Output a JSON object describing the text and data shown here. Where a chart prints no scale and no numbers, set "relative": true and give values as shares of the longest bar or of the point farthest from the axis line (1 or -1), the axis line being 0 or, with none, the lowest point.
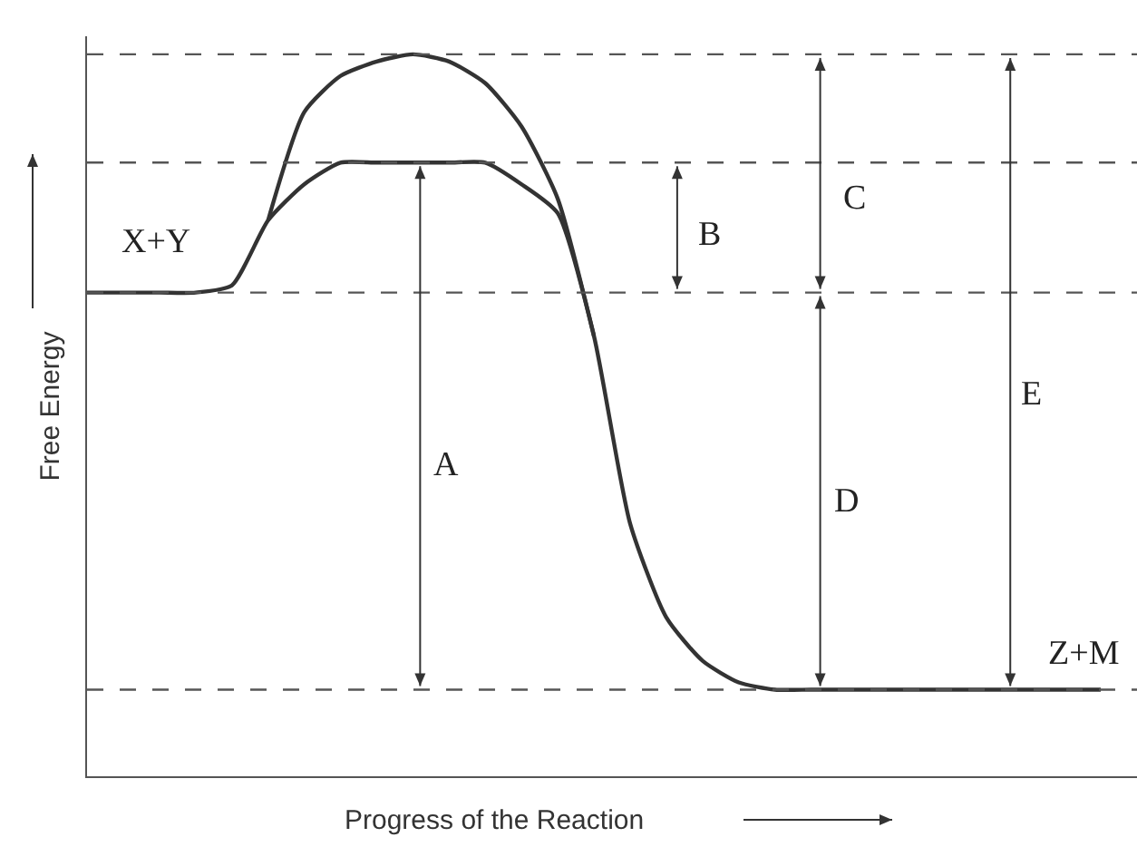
{
  "chart_data": {
    "type": "line",
    "xlabel": "Progress of the Reaction",
    "ylabel": "Free Energy",
    "relative": true,
    "line_style": "solid",
    "categories": [
      null,
      null,
      null,
      null,
      null,
      null,
      null,
      null,
      null,
      null,
      null,
      null,
      null,
      null,
      null,
      null,
      null,
      null,
      null,
      null,
      null,
      null,
      null,
      null,
      null,
      null,
      null,
      null,
      null
    ],
    "series": [
      {
        "color": "#333333",
        "values": [
          0.67,
          0.67,
          0.67,
          0.67,
          0.68,
          0.77,
          0.82,
          0.85,
          0.85,
          0.85,
          0.85,
          0.85,
          0.82,
          0.78,
          0.61,
          0.35,
          0.22,
          0.16,
          0.13,
          0.12,
          0.12,
          0.12,
          0.12,
          0.12,
          0.12,
          0.12,
          0.12,
          0.12,
          0.12
        ]
      },
      {
        "color": "#333333",
        "values": [
          null,
          null,
          null,
          null,
          null,
          0.77,
          0.92,
          0.97,
          0.99,
          1,
          0.99,
          0.96,
          0.9,
          0.8,
          0.61,
          null,
          null,
          null,
          null,
          null,
          null,
          null,
          null,
          null,
          null,
          null,
          null,
          null,
          null
        ]
      }
    ],
    "ref_lines": [
      {
        "axis": "y",
        "value": 1,
        "line_style": "dashed"
      },
      {
        "axis": "y",
        "value": 0.85,
        "line_style": "dashed"
      },
      {
        "axis": "y",
        "value": 0.67,
        "line_style": "dashed"
      },
      {
        "axis": "y",
        "value": 0.12,
        "line_style": "dashed"
      }
    ],
    "annotations": [
      "X+Y",
      "Z+M",
      "A",
      "B",
      "C",
      "D",
      "E"
    ]
  }
}
